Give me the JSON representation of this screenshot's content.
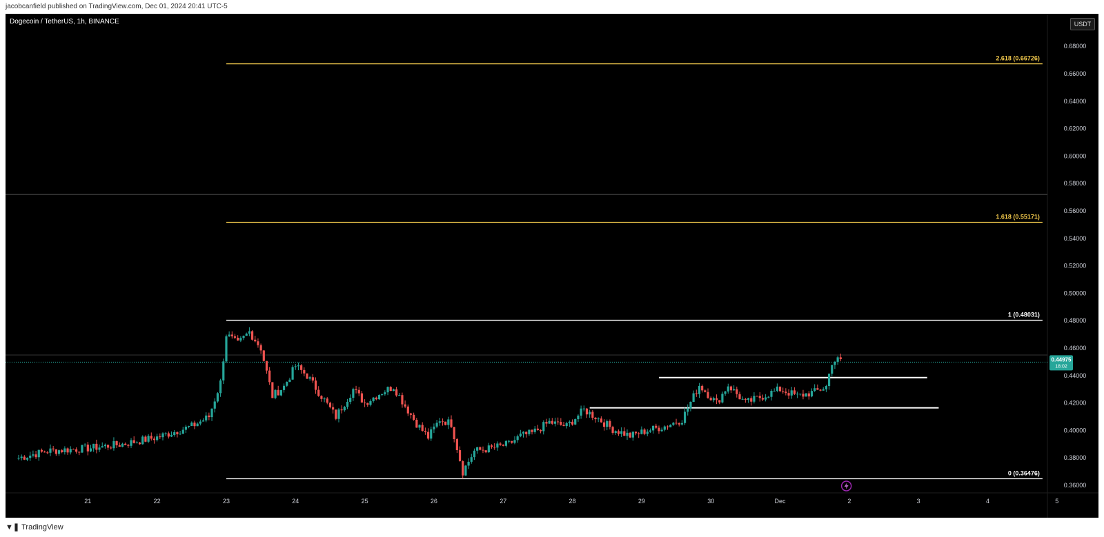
{
  "header": {
    "publisher_line": "jacobcanfield published on TradingView.com, Dec 01, 2024 20:41 UTC-5",
    "footer_brand": "TradingView"
  },
  "chart_header": {
    "pair_title": "Dogecoin / TetherUS, 1h, BINANCE",
    "currency_button": "USDT"
  },
  "price_marker": {
    "price": "0.44975",
    "countdown": "18:02",
    "color": "#26a69a"
  },
  "event_icon": "lightning-icon",
  "chart_data": {
    "type": "candlestick",
    "title": "Dogecoin / TetherUS, 1h, BINANCE",
    "ylim": [
      0.35,
      0.69
    ],
    "yticks": [
      "0.36000",
      "0.38000",
      "0.40000",
      "0.42000",
      "0.44000",
      "0.46000",
      "0.48000",
      "0.50000",
      "0.52000",
      "0.54000",
      "0.56000",
      "0.58000",
      "0.60000",
      "0.62000",
      "0.64000",
      "0.66000",
      "0.68000"
    ],
    "x_range_hours": [
      0,
      364
    ],
    "x_tick_labels": [
      {
        "label": "21",
        "hour": 24
      },
      {
        "label": "22",
        "hour": 48
      },
      {
        "label": "23",
        "hour": 72
      },
      {
        "label": "24",
        "hour": 96
      },
      {
        "label": "25",
        "hour": 120
      },
      {
        "label": "26",
        "hour": 144
      },
      {
        "label": "27",
        "hour": 168
      },
      {
        "label": "28",
        "hour": 192
      },
      {
        "label": "29",
        "hour": 216
      },
      {
        "label": "30",
        "hour": 240
      },
      {
        "label": "Dec",
        "hour": 264
      },
      {
        "label": "2",
        "hour": 288
      },
      {
        "label": "3",
        "hour": 312
      },
      {
        "label": "4",
        "hour": 336
      },
      {
        "label": "5",
        "hour": 360
      }
    ],
    "colors": {
      "up": "#26a69a",
      "down": "#ef5350",
      "fib": "#f2c94c",
      "fib_white": "#ffffff"
    },
    "fib_levels": [
      {
        "label": "2.618 (0.66726)",
        "value": 0.66726,
        "color": "#f2c94c"
      },
      {
        "label": "1.618 (0.55171)",
        "value": 0.55171,
        "color": "#f2c94c"
      },
      {
        "label": "1 (0.48031)",
        "value": 0.48031,
        "color": "#ffffff"
      },
      {
        "label": "0 (0.36476)",
        "value": 0.36476,
        "color": "#ffffff"
      }
    ],
    "fib_start_hour": 72,
    "fib_end_hour": 355,
    "separator_price": 0.572,
    "current_price": 0.44975,
    "current_price_line": 0.455,
    "range_lines": [
      {
        "from_hour": 222,
        "to_hour": 315,
        "value": 0.4385
      },
      {
        "from_hour": 198,
        "to_hour": 319,
        "value": 0.4165
      }
    ],
    "anchors": [
      [
        0,
        0.38
      ],
      [
        10,
        0.385
      ],
      [
        24,
        0.387
      ],
      [
        36,
        0.39
      ],
      [
        48,
        0.395
      ],
      [
        60,
        0.403
      ],
      [
        66,
        0.41
      ],
      [
        70,
        0.435
      ],
      [
        72,
        0.47
      ],
      [
        76,
        0.463
      ],
      [
        80,
        0.472
      ],
      [
        84,
        0.46
      ],
      [
        88,
        0.425
      ],
      [
        92,
        0.432
      ],
      [
        96,
        0.447
      ],
      [
        100,
        0.44
      ],
      [
        106,
        0.422
      ],
      [
        110,
        0.41
      ],
      [
        116,
        0.43
      ],
      [
        120,
        0.42
      ],
      [
        126,
        0.428
      ],
      [
        130,
        0.432
      ],
      [
        134,
        0.418
      ],
      [
        138,
        0.405
      ],
      [
        142,
        0.395
      ],
      [
        146,
        0.408
      ],
      [
        150,
        0.405
      ],
      [
        154,
        0.37
      ],
      [
        158,
        0.385
      ],
      [
        164,
        0.387
      ],
      [
        170,
        0.39
      ],
      [
        174,
        0.396
      ],
      [
        178,
        0.398
      ],
      [
        184,
        0.406
      ],
      [
        190,
        0.403
      ],
      [
        196,
        0.415
      ],
      [
        200,
        0.41
      ],
      [
        206,
        0.401
      ],
      [
        212,
        0.396
      ],
      [
        218,
        0.4
      ],
      [
        224,
        0.403
      ],
      [
        230,
        0.408
      ],
      [
        236,
        0.433
      ],
      [
        242,
        0.42
      ],
      [
        246,
        0.433
      ],
      [
        252,
        0.42
      ],
      [
        258,
        0.425
      ],
      [
        264,
        0.43
      ],
      [
        270,
        0.425
      ],
      [
        276,
        0.428
      ],
      [
        280,
        0.432
      ],
      [
        282,
        0.45
      ],
      [
        285,
        0.452
      ]
    ]
  }
}
